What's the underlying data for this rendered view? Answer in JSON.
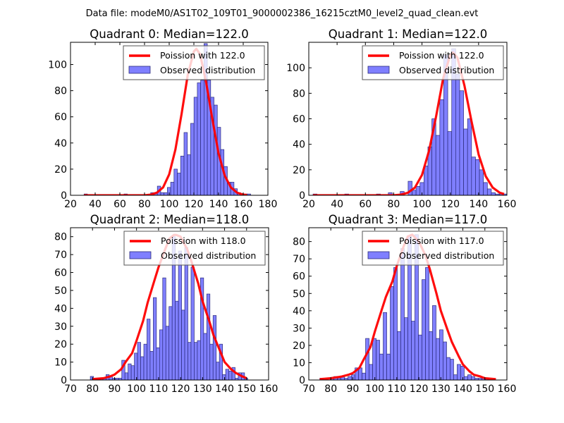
{
  "figure": {
    "suptitle": "Data file: modeM0/AS1T02_109T01_9000002386_16215cztM0_level2_quad_clean.evt"
  },
  "colors": {
    "bar_fill": "#7f7fff",
    "bar_edge": "#2b2b7a",
    "line": "#ff0000"
  },
  "chart_data": [
    {
      "type": "bar",
      "title": "Quadrant 0: Median=122.0",
      "xlabel": "",
      "ylabel": "",
      "xlim": [
        20,
        180
      ],
      "ylim": [
        0,
        117
      ],
      "xticks": [
        20,
        40,
        60,
        80,
        100,
        120,
        140,
        160,
        180
      ],
      "yticks": [
        0,
        20,
        40,
        60,
        80,
        100
      ],
      "legend": {
        "position": "top-right",
        "entries": [
          "Poission with 122.0",
          "Observed distribution"
        ]
      },
      "histogram": {
        "bin_width": 2.7,
        "bin_starts": [
          31,
          33.7,
          36.4,
          39.1,
          41.8,
          44.5,
          47.2,
          49.9,
          52.6,
          55.3,
          58,
          60.7,
          63.4,
          66.1,
          68.8,
          71.5,
          74.2,
          76.9,
          79.6,
          82.3,
          85,
          87.7,
          90.4,
          93.1,
          95.8,
          98.5,
          101.2,
          103.9,
          106.6,
          109.3,
          112,
          114.7,
          117.4,
          120.1,
          122.8,
          125.5,
          128.2,
          130.9,
          133.6,
          136.3,
          139,
          141.7,
          144.4,
          147.1,
          149.8,
          152.5,
          155.2,
          157.9,
          160.6,
          163.3
        ],
        "counts": [
          1,
          0,
          0,
          0,
          0,
          0,
          0,
          0,
          0,
          0,
          0,
          0,
          1,
          0,
          0,
          0,
          0,
          0,
          0,
          0,
          2,
          2,
          7,
          2,
          2,
          6,
          10,
          20,
          17,
          30,
          48,
          31,
          55,
          75,
          86,
          88,
          116,
          88,
          75,
          69,
          52,
          35,
          22,
          10,
          10,
          5,
          2,
          1,
          1,
          1
        ]
      },
      "series": [
        {
          "name": "Poission with 122.0",
          "type": "line",
          "mean": 122.0,
          "x": [
            31,
            80,
            85,
            90,
            95,
            100,
            105,
            110,
            115,
            120,
            122,
            125,
            130,
            135,
            140,
            145,
            150,
            155,
            160,
            163
          ],
          "y": [
            0,
            0,
            0.5,
            2,
            6,
            16,
            35,
            62,
            92,
            110,
            112,
            108,
            86,
            58,
            32,
            15,
            6,
            2,
            0.5,
            0.2
          ]
        }
      ]
    },
    {
      "type": "bar",
      "title": "Quadrant 1: Median=122.0",
      "xlabel": "",
      "ylabel": "",
      "xlim": [
        20,
        160
      ],
      "ylim": [
        0,
        120
      ],
      "xticks": [
        20,
        40,
        60,
        80,
        100,
        120,
        140,
        160
      ],
      "yticks": [
        0,
        20,
        40,
        60,
        80,
        100
      ],
      "legend": {
        "position": "top-right",
        "entries": [
          "Poission with 122.0",
          "Observed distribution"
        ]
      },
      "histogram": {
        "bin_width": 2.8,
        "bin_starts": [
          23,
          25.8,
          28.6,
          31.4,
          34.2,
          37,
          39.8,
          42.6,
          45.4,
          48.2,
          51,
          53.8,
          56.6,
          59.4,
          62.2,
          65,
          67.8,
          70.6,
          73.4,
          76.2,
          79,
          81.8,
          84.6,
          87.4,
          90.2,
          93,
          95.8,
          98.6,
          101.4,
          104.2,
          107,
          109.8,
          112.6,
          115.4,
          118.2,
          121,
          123.8,
          126.6,
          129.4,
          132.2,
          135,
          137.8,
          140.6,
          143.4,
          146.2,
          149,
          151.8,
          154.6,
          157.4
        ],
        "counts": [
          1,
          0,
          0,
          0,
          0,
          0,
          0,
          0,
          1,
          0,
          0,
          0,
          0,
          0,
          0,
          0,
          1,
          0,
          0,
          2,
          0,
          0,
          3,
          0,
          11,
          4,
          7,
          10,
          23,
          38,
          60,
          47,
          75,
          110,
          50,
          115,
          95,
          82,
          52,
          60,
          30,
          28,
          20,
          10,
          5,
          2,
          1,
          1,
          1
        ]
      },
      "series": [
        {
          "name": "Poission with 122.0",
          "type": "line",
          "mean": 122.0,
          "x": [
            23,
            80,
            85,
            90,
            95,
            100,
            105,
            110,
            115,
            120,
            122,
            125,
            130,
            135,
            140,
            145,
            150,
            155,
            158
          ],
          "y": [
            0,
            0,
            0.5,
            2,
            6,
            16,
            35,
            62,
            92,
            110,
            112,
            108,
            86,
            58,
            32,
            15,
            6,
            2,
            1
          ]
        }
      ]
    },
    {
      "type": "bar",
      "title": "Quadrant 2: Median=118.0",
      "xlabel": "",
      "ylabel": "",
      "xlim": [
        70,
        160
      ],
      "ylim": [
        0,
        85
      ],
      "xticks": [
        70,
        80,
        90,
        100,
        110,
        120,
        130,
        140,
        150,
        160
      ],
      "yticks": [
        0,
        10,
        20,
        30,
        40,
        50,
        60,
        70,
        80
      ],
      "legend": {
        "position": "top-right",
        "entries": [
          "Poission with 118.0",
          "Observed distribution"
        ]
      },
      "histogram": {
        "bin_width": 1.43,
        "bin_starts": [
          79,
          80.43,
          81.86,
          83.29,
          84.72,
          86.15,
          87.58,
          89.01,
          90.44,
          91.87,
          93.3,
          94.73,
          96.16,
          97.59,
          99.02,
          100.45,
          101.88,
          103.31,
          104.74,
          106.17,
          107.6,
          109.03,
          110.46,
          111.89,
          113.32,
          114.75,
          116.18,
          117.61,
          119.04,
          120.47,
          121.9,
          123.33,
          124.76,
          126.19,
          127.62,
          129.05,
          130.48,
          131.91,
          133.34,
          134.77,
          136.2,
          137.63,
          139.06,
          140.49,
          141.92,
          143.35,
          144.78,
          146.21,
          147.64,
          149.07
        ],
        "counts": [
          2,
          1,
          1,
          1,
          1,
          3,
          2,
          1,
          1,
          1,
          11,
          4,
          9,
          8,
          15,
          21,
          13,
          20,
          34,
          16,
          46,
          18,
          28,
          57,
          30,
          41,
          80,
          44,
          72,
          39,
          74,
          21,
          63,
          21,
          22,
          57,
          26,
          48,
          20,
          36,
          10,
          20,
          3,
          6,
          5,
          7,
          1,
          4,
          4,
          1
        ]
      },
      "series": [
        {
          "name": "Poission with 118.0",
          "type": "line",
          "mean": 118.0,
          "x": [
            80,
            85,
            88,
            90,
            93,
            95,
            98,
            100,
            103,
            105,
            108,
            110,
            113,
            115,
            117,
            118,
            120,
            123,
            125,
            128,
            130,
            133,
            135,
            138,
            140,
            143,
            145,
            148,
            150
          ],
          "y": [
            0.5,
            1,
            2,
            3,
            6,
            10,
            15,
            22,
            33,
            43,
            55,
            63,
            73,
            79,
            81,
            81,
            80,
            73,
            66,
            54,
            44,
            33,
            25,
            16,
            10,
            6,
            4,
            2,
            1
          ]
        }
      ]
    },
    {
      "type": "bar",
      "title": "Quadrant 3: Median=117.0",
      "xlabel": "",
      "ylabel": "",
      "xlim": [
        70,
        160
      ],
      "ylim": [
        0,
        88
      ],
      "xticks": [
        70,
        80,
        90,
        100,
        110,
        120,
        130,
        140,
        150,
        160
      ],
      "yticks": [
        0,
        10,
        20,
        30,
        40,
        50,
        60,
        70,
        80
      ],
      "legend": {
        "position": "top-right",
        "entries": [
          "Poission with 117.0",
          "Observed distribution"
        ]
      },
      "histogram": {
        "bin_width": 1.6,
        "bin_starts": [
          75,
          76.6,
          78.2,
          79.8,
          81.4,
          83,
          84.6,
          86.2,
          87.8,
          89.4,
          91,
          92.6,
          94.2,
          95.8,
          97.4,
          99,
          100.6,
          102.2,
          103.8,
          105.4,
          107,
          108.6,
          110.2,
          111.8,
          113.4,
          115,
          116.6,
          118.2,
          119.8,
          121.4,
          123,
          124.6,
          126.2,
          127.8,
          129.4,
          131,
          132.6,
          134.2,
          135.8,
          137.4,
          139,
          140.6,
          142.2,
          143.8,
          145.4,
          147,
          148.6,
          150.2,
          151.8
        ],
        "counts": [
          1,
          0,
          0,
          1,
          2,
          1,
          2,
          1,
          2,
          3,
          7,
          7,
          4,
          24,
          9,
          24,
          23,
          15,
          39,
          15,
          54,
          65,
          28,
          76,
          36,
          83,
          34,
          84,
          26,
          58,
          65,
          28,
          43,
          24,
          29,
          22,
          13,
          12,
          3,
          9,
          8,
          2,
          3,
          2,
          1,
          1,
          1,
          1,
          0
        ]
      },
      "series": [
        {
          "name": "Poission with 117.0",
          "type": "line",
          "mean": 117.0,
          "x": [
            75,
            80,
            85,
            88,
            90,
            93,
            95,
            98,
            100,
            103,
            105,
            108,
            110,
            113,
            115,
            117,
            120,
            123,
            125,
            128,
            130,
            133,
            135,
            138,
            140,
            143,
            145,
            148,
            150,
            155
          ],
          "y": [
            0.5,
            1,
            2,
            3,
            4,
            7,
            12,
            19,
            28,
            40,
            48,
            57,
            66,
            77,
            83,
            84,
            80,
            72,
            64,
            50,
            40,
            29,
            22,
            14,
            9,
            5,
            3,
            2,
            1,
            0.5
          ]
        }
      ]
    }
  ]
}
